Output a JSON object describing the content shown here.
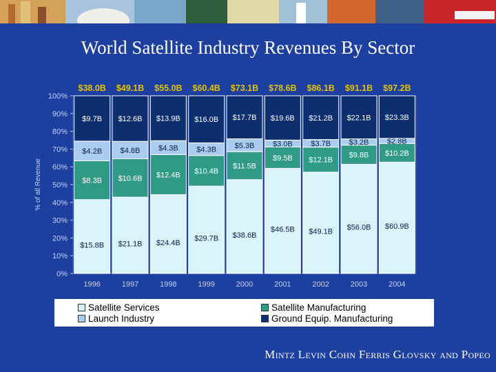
{
  "slide": {
    "title": "World Satellite Industry Revenues By Sector",
    "footer": "Mintz Levin Cohn Ferris Glovsky and Popeo"
  },
  "legend": {
    "items": [
      {
        "label": "Satellite Services",
        "color": "#d9f4fb"
      },
      {
        "label": "Launch Industry",
        "color": "#a9ccef"
      },
      {
        "label": "Satellite Manufacturing",
        "color": "#2f9a86"
      },
      {
        "label": "Ground Equip. Manufacturing",
        "color": "#0d2f70"
      }
    ]
  },
  "chart_data": {
    "type": "bar",
    "stacked": true,
    "normalized": true,
    "categories": [
      "1996",
      "1997",
      "1998",
      "1999",
      "2000",
      "2001",
      "2002",
      "2003",
      "2004"
    ],
    "totals": [
      "$38.0B",
      "$49.1B",
      "$55.0B",
      "$60.4B",
      "$73.1B",
      "$78.6B",
      "$86.1B",
      "$91.1B",
      "$97.2B"
    ],
    "ylabel": "% of all Revenue",
    "ylim": [
      0,
      100
    ],
    "yticks": [
      "0%",
      "10%",
      "20%",
      "30%",
      "40%",
      "50%",
      "60%",
      "70%",
      "80%",
      "90%",
      "100%"
    ],
    "series": [
      {
        "name": "Satellite Services",
        "color": "#d9f4fb",
        "values": [
          15.8,
          21.1,
          24.4,
          29.7,
          38.6,
          46.5,
          49.1,
          56.0,
          60.9
        ],
        "labels": [
          "$15.8B",
          "$21.1B",
          "$24.4B",
          "$29.7B",
          "$38.6B",
          "$46.5B",
          "$49.1B",
          "$56.0B",
          "$60.9B"
        ]
      },
      {
        "name": "Satellite Manufacturing",
        "color": "#2f9a86",
        "values": [
          8.3,
          10.6,
          12.4,
          10.4,
          11.5,
          9.5,
          12.1,
          9.8,
          10.2
        ],
        "labels": [
          "$8.3B",
          "$10.6B",
          "$12.4B",
          "$10.4B",
          "$11.5B",
          "$9.5B",
          "$12.1B",
          "$9.8B",
          "$10.2B"
        ]
      },
      {
        "name": "Launch Industry",
        "color": "#a9ccef",
        "values": [
          4.2,
          4.8,
          4.3,
          4.3,
          5.3,
          3.0,
          3.7,
          3.2,
          2.8
        ],
        "labels": [
          "$4.2B",
          "$4.8B",
          "$4.3B",
          "$4.3B",
          "$5.3B",
          "$3.0B",
          "$3.7B",
          "$3.2B",
          "$2.8B"
        ]
      },
      {
        "name": "Ground Equip. Manufacturing",
        "color": "#0d2f70",
        "values": [
          9.7,
          12.6,
          13.9,
          16.0,
          17.7,
          19.6,
          21.2,
          22.1,
          23.3
        ],
        "labels": [
          "$9.7B",
          "$12.6B",
          "$13.9B",
          "$16.0B",
          "$17.7B",
          "$19.6B",
          "$21.2B",
          "$22.1B",
          "$23.3B"
        ]
      }
    ]
  }
}
